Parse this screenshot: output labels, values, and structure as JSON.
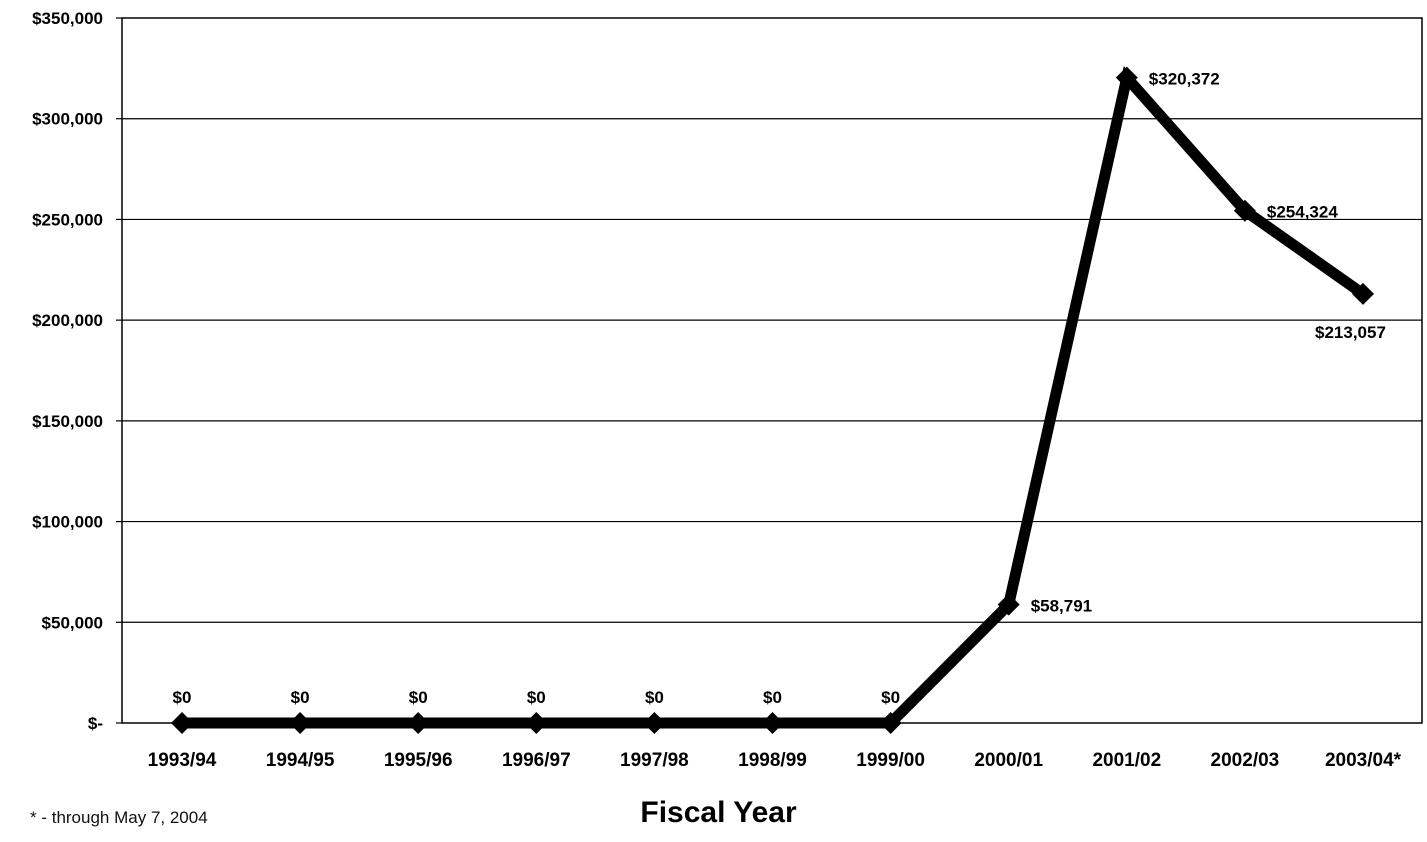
{
  "chart_data": {
    "type": "line",
    "categories": [
      "1993/94",
      "1994/95",
      "1995/96",
      "1996/97",
      "1997/98",
      "1998/99",
      "1999/00",
      "2000/01",
      "2001/02",
      "2002/03",
      "2003/04*"
    ],
    "series": [
      {
        "values": [
          0,
          0,
          0,
          0,
          0,
          0,
          0,
          58791,
          320372,
          254324,
          213057
        ],
        "data_labels": [
          "$0",
          "$0",
          "$0",
          "$0",
          "$0",
          "$0",
          "$0",
          "$58,791",
          "$320,372",
          "$254,324",
          "$213,057"
        ],
        "color": "#000000",
        "marker": "diamond"
      }
    ],
    "ylim": [
      0,
      350000
    ],
    "yticks": [
      0,
      50000,
      100000,
      150000,
      200000,
      250000,
      300000,
      350000
    ],
    "ytick_labels": [
      "$-",
      "$50,000",
      "$100,000",
      "$150,000",
      "$200,000",
      "$250,000",
      "$300,000",
      "$350,000"
    ],
    "xlabel": "Fiscal Year",
    "ylabel": "",
    "grid": "horizontal",
    "legend": "none"
  },
  "footnote": "* - through May 7, 2004"
}
